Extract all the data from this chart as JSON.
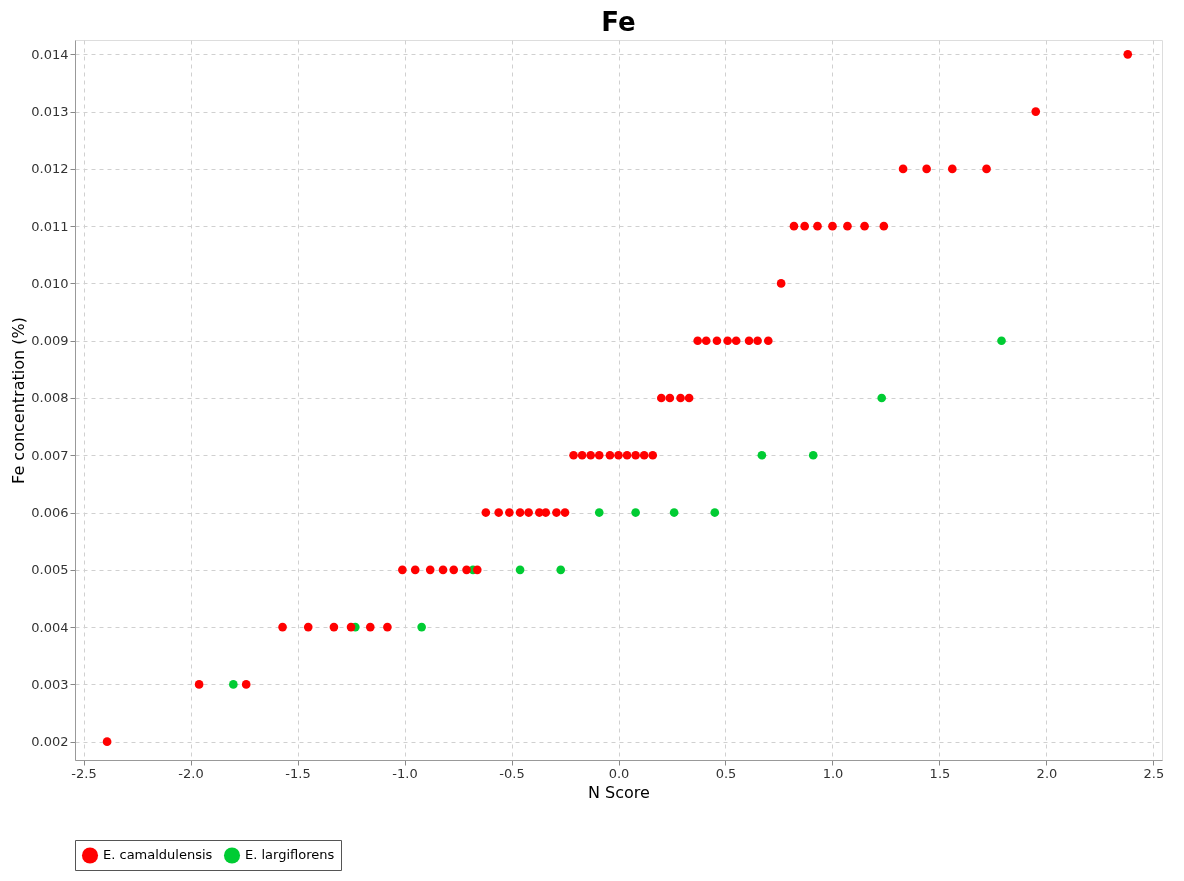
{
  "chart_data": {
    "type": "scatter",
    "title": "Fe",
    "xlabel": "N Score",
    "ylabel": "Fe concentration (%)",
    "xlim": [
      -2.54,
      2.54
    ],
    "ylim": [
      0.00168,
      0.01425
    ],
    "xticks": [
      -2.5,
      {
        "value": -2,
        "label": "-2.0"
      },
      -1.5,
      {
        "value": -1,
        "label": "-1.0"
      },
      -0.5,
      {
        "value": 0,
        "label": "0.0"
      },
      0.5,
      {
        "value": 1,
        "label": "1.0"
      },
      1.5,
      {
        "value": 2,
        "label": "2.0"
      },
      2.5
    ],
    "yticks": [
      0.002,
      0.003,
      0.004,
      0.005,
      0.006,
      0.007,
      0.008,
      0.009,
      {
        "value": 0.01,
        "label": "0.010"
      },
      0.011,
      0.012,
      0.013,
      0.014
    ],
    "grid": true,
    "legend": "bottom",
    "marker": "circle",
    "series": [
      {
        "name": "E. camaldulensis",
        "color": "#ff0000",
        "x": [
          -2.39,
          -1.96,
          -1.74,
          -1.57,
          -1.45,
          -1.33,
          -1.25,
          -1.16,
          -1.08,
          -1.01,
          -0.95,
          -0.88,
          -0.82,
          -0.77,
          -0.71,
          -0.66,
          -0.62,
          -0.56,
          -0.51,
          -0.46,
          -0.42,
          -0.37,
          -0.34,
          -0.29,
          -0.25,
          -0.21,
          -0.17,
          -0.13,
          -0.09,
          -0.04,
          0.0,
          0.04,
          0.08,
          0.12,
          0.16,
          0.2,
          0.24,
          0.29,
          0.33,
          0.37,
          0.41,
          0.46,
          0.51,
          0.55,
          0.61,
          0.65,
          0.7,
          0.76,
          0.82,
          0.87,
          0.93,
          1.0,
          1.07,
          1.15,
          1.24,
          1.33,
          1.44,
          1.56,
          1.72,
          1.95,
          2.38
        ],
        "values": [
          0.002,
          0.003,
          0.003,
          0.004,
          0.004,
          0.004,
          0.004,
          0.004,
          0.004,
          0.005,
          0.005,
          0.005,
          0.005,
          0.005,
          0.005,
          0.005,
          0.006,
          0.006,
          0.006,
          0.006,
          0.006,
          0.006,
          0.006,
          0.006,
          0.006,
          0.007,
          0.007,
          0.007,
          0.007,
          0.007,
          0.007,
          0.007,
          0.007,
          0.007,
          0.007,
          0.008,
          0.008,
          0.008,
          0.008,
          0.009,
          0.009,
          0.009,
          0.009,
          0.009,
          0.009,
          0.009,
          0.009,
          0.01,
          0.011,
          0.011,
          0.011,
          0.011,
          0.011,
          0.011,
          0.011,
          0.012,
          0.012,
          0.012,
          0.012,
          0.013,
          0.014
        ]
      },
      {
        "name": "E. largiflorens",
        "color": "#00cc33",
        "x": [
          -1.8,
          -1.23,
          -0.92,
          -0.68,
          -0.46,
          -0.27,
          -0.09,
          0.08,
          0.26,
          0.45,
          0.67,
          0.91,
          1.23,
          1.79
        ],
        "values": [
          0.003,
          0.004,
          0.004,
          0.005,
          0.005,
          0.005,
          0.006,
          0.006,
          0.006,
          0.006,
          0.007,
          0.007,
          0.008,
          0.009
        ]
      }
    ]
  }
}
